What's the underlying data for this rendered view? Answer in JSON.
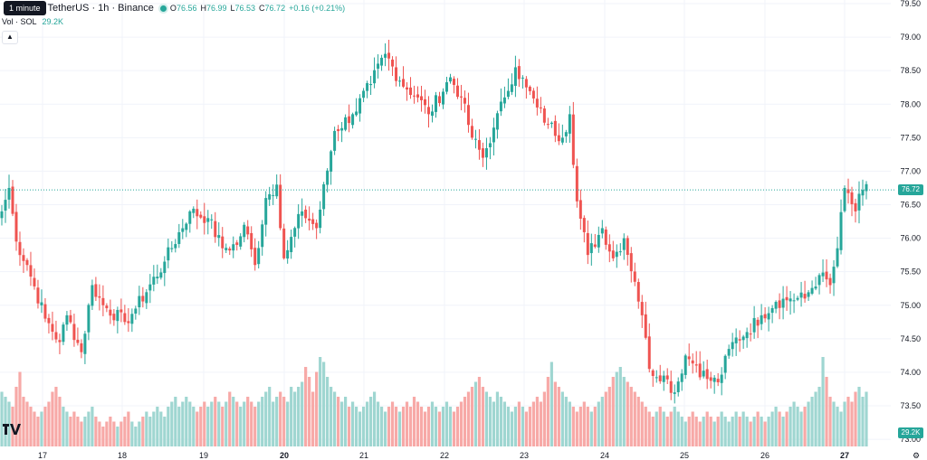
{
  "header": {
    "tooltip": "1 minute",
    "symbol": "TetherUS · 1h · Binance",
    "o_label": "O",
    "o_value": "76.56",
    "h_label": "H",
    "h_value": "76.99",
    "l_label": "L",
    "l_value": "76.53",
    "c_label": "C",
    "c_value": "76.72",
    "change": "+0.16 (+0.21%)"
  },
  "volume_legend": {
    "label": "Vol · SOL",
    "value": "29.2K"
  },
  "price_tags": {
    "last_price": "76.72",
    "last_volume": "29.2K"
  },
  "colors": {
    "up": "#26a69a",
    "down": "#ef5350",
    "up_volume": "#9fd6d1",
    "down_volume": "#f7a9a7"
  },
  "icons": [
    "chevron-up-icon",
    "tradingview-logo-icon",
    "settings-icon"
  ],
  "chart_data": {
    "type": "candlestick",
    "y_ticks": [
      "79.50",
      "79.00",
      "78.50",
      "78.00",
      "77.50",
      "77.00",
      "76.50",
      "76.00",
      "75.50",
      "75.00",
      "74.50",
      "74.00",
      "73.50",
      "73.00"
    ],
    "x_ticks": [
      "17",
      "18",
      "19",
      "20",
      "21",
      "22",
      "23",
      "24",
      "25",
      "26",
      "27"
    ],
    "ylim": [
      73.0,
      79.5
    ],
    "keypoints": [
      [
        0,
        76.4
      ],
      [
        2,
        76.75
      ],
      [
        4,
        75.95
      ],
      [
        7,
        75.6
      ],
      [
        12,
        74.8
      ],
      [
        16,
        74.45
      ],
      [
        18,
        74.85
      ],
      [
        22,
        74.3
      ],
      [
        25,
        75.3
      ],
      [
        28,
        75.0
      ],
      [
        34,
        74.75
      ],
      [
        37,
        74.95
      ],
      [
        45,
        75.65
      ],
      [
        52,
        76.4
      ],
      [
        57,
        76.3
      ],
      [
        61,
        75.85
      ],
      [
        65,
        75.9
      ],
      [
        67,
        76.2
      ],
      [
        70,
        75.6
      ],
      [
        73,
        76.6
      ],
      [
        76,
        76.8
      ],
      [
        78,
        75.7
      ],
      [
        83,
        76.4
      ],
      [
        87,
        76.15
      ],
      [
        92,
        77.6
      ],
      [
        97,
        77.85
      ],
      [
        102,
        78.3
      ],
      [
        106,
        78.75
      ],
      [
        110,
        78.35
      ],
      [
        115,
        78.1
      ],
      [
        118,
        77.85
      ],
      [
        124,
        78.4
      ],
      [
        127,
        78.1
      ],
      [
        130,
        77.5
      ],
      [
        133,
        77.2
      ],
      [
        136,
        77.65
      ],
      [
        139,
        78.1
      ],
      [
        142,
        78.55
      ],
      [
        145,
        78.25
      ],
      [
        148,
        77.95
      ],
      [
        151,
        77.7
      ],
      [
        155,
        77.5
      ],
      [
        157,
        77.85
      ],
      [
        159,
        76.55
      ],
      [
        162,
        75.75
      ],
      [
        166,
        76.15
      ],
      [
        169,
        75.7
      ],
      [
        172,
        76.0
      ],
      [
        175,
        75.35
      ],
      [
        177,
        74.85
      ],
      [
        179,
        74.05
      ],
      [
        183,
        73.95
      ],
      [
        186,
        73.7
      ],
      [
        189,
        74.25
      ],
      [
        192,
        74.1
      ],
      [
        195,
        73.9
      ],
      [
        198,
        73.85
      ],
      [
        202,
        74.45
      ],
      [
        206,
        74.6
      ],
      [
        210,
        74.85
      ],
      [
        214,
        75.05
      ],
      [
        218,
        75.1
      ],
      [
        222,
        75.1
      ],
      [
        226,
        75.45
      ],
      [
        229,
        75.3
      ],
      [
        231,
        75.85
      ],
      [
        233,
        76.75
      ],
      [
        236,
        76.4
      ],
      [
        238,
        76.72
      ]
    ],
    "volume_profile": [
      0.55,
      0.5,
      0.45,
      0.4,
      0.6,
      0.75,
      0.5,
      0.45,
      0.4,
      0.35,
      0.3,
      0.35,
      0.4,
      0.45,
      0.55,
      0.6,
      0.5,
      0.4,
      0.35,
      0.3,
      0.35,
      0.3,
      0.25,
      0.3,
      0.35,
      0.4,
      0.3,
      0.25,
      0.2,
      0.25,
      0.3,
      0.25,
      0.2,
      0.25,
      0.3,
      0.35,
      0.25,
      0.2,
      0.25,
      0.3,
      0.35,
      0.3,
      0.35,
      0.4,
      0.35,
      0.3,
      0.4,
      0.45,
      0.5,
      0.4,
      0.45,
      0.5,
      0.45,
      0.4,
      0.35,
      0.4,
      0.45,
      0.4,
      0.45,
      0.5,
      0.45,
      0.4,
      0.45,
      0.55,
      0.5,
      0.45,
      0.4,
      0.45,
      0.5,
      0.45,
      0.4,
      0.45,
      0.5,
      0.55,
      0.6,
      0.45,
      0.5,
      0.55,
      0.5,
      0.45,
      0.6,
      0.55,
      0.6,
      0.65,
      0.8,
      0.7,
      0.55,
      0.75,
      0.9,
      0.85,
      0.7,
      0.6,
      0.55,
      0.5,
      0.45,
      0.5,
      0.4,
      0.45,
      0.4,
      0.35,
      0.4,
      0.45,
      0.5,
      0.55,
      0.45,
      0.4,
      0.35,
      0.4,
      0.45,
      0.4,
      0.35,
      0.4,
      0.45,
      0.4,
      0.5,
      0.45,
      0.4,
      0.35,
      0.4,
      0.45,
      0.4,
      0.35,
      0.4,
      0.45,
      0.4,
      0.35,
      0.4,
      0.45,
      0.5,
      0.55,
      0.6,
      0.65,
      0.7,
      0.6,
      0.55,
      0.5,
      0.45,
      0.55,
      0.5,
      0.45,
      0.4,
      0.35,
      0.4,
      0.45,
      0.4,
      0.35,
      0.4,
      0.45,
      0.5,
      0.45,
      0.55,
      0.7,
      0.85,
      0.65,
      0.6,
      0.55,
      0.5,
      0.45,
      0.4,
      0.35,
      0.4,
      0.45,
      0.4,
      0.35,
      0.4,
      0.45,
      0.5,
      0.55,
      0.6,
      0.7,
      0.75,
      0.8,
      0.7,
      0.65,
      0.6,
      0.55,
      0.5,
      0.45,
      0.4,
      0.35,
      0.3,
      0.35,
      0.4,
      0.35,
      0.3,
      0.35,
      0.4,
      0.35,
      0.3,
      0.25,
      0.3,
      0.35,
      0.3,
      0.25,
      0.3,
      0.35,
      0.3,
      0.25,
      0.3,
      0.35,
      0.3,
      0.25,
      0.3,
      0.35,
      0.3,
      0.35,
      0.3,
      0.25,
      0.3,
      0.35,
      0.3,
      0.25,
      0.3,
      0.35,
      0.4,
      0.35,
      0.3,
      0.35,
      0.4,
      0.45,
      0.4,
      0.35,
      0.4,
      0.45,
      0.5,
      0.55,
      0.6,
      0.9,
      0.7,
      0.5,
      0.45,
      0.4,
      0.35,
      0.45,
      0.5,
      0.45,
      0.55,
      0.6,
      0.5
    ]
  }
}
